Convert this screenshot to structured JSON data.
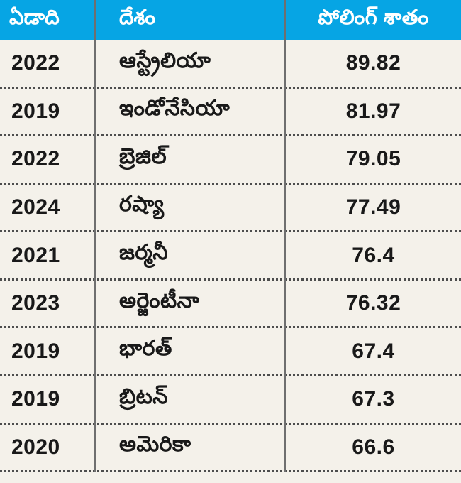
{
  "table": {
    "headers": [
      "ఏడాది",
      "దేశం",
      "పోలింగ్ శాతం"
    ],
    "rows": [
      {
        "year": "2022",
        "country": "ఆస్ట్రేలియా",
        "percent": "89.82"
      },
      {
        "year": "2019",
        "country": "ఇండోనేసియా",
        "percent": "81.97"
      },
      {
        "year": "2022",
        "country": "బ్రెజిల్",
        "percent": "79.05"
      },
      {
        "year": "2024",
        "country": "రష్యా",
        "percent": "77.49"
      },
      {
        "year": "2021",
        "country": "జర్మనీ",
        "percent": "76.4"
      },
      {
        "year": "2023",
        "country": "అర్జెంటీనా",
        "percent": "76.32"
      },
      {
        "year": "2019",
        "country": "భారత్",
        "percent": "67.4"
      },
      {
        "year": "2019",
        "country": "బ్రిటన్",
        "percent": "67.3"
      },
      {
        "year": "2020",
        "country": "అమెరికా",
        "percent": "66.6"
      }
    ]
  },
  "colors": {
    "header_bg": "#06A5E4",
    "header_text": "#FFFFFF",
    "body_bg": "#F4F1EA",
    "text": "#191919",
    "divider": "#6F6F6F",
    "dotted": "#4D4D4D"
  },
  "chart_data": {
    "type": "table",
    "title": "పోలింగ్ శాతం",
    "columns": [
      "ఏడాది",
      "దేశం",
      "పోలింగ్ శాతం"
    ],
    "rows": [
      [
        "2022",
        "ఆస్ట్రేలియా",
        89.82
      ],
      [
        "2019",
        "ఇండోనేసియా",
        81.97
      ],
      [
        "2022",
        "బ్రెజిల్",
        79.05
      ],
      [
        "2024",
        "రష్యా",
        77.49
      ],
      [
        "2021",
        "జర్మనీ",
        76.4
      ],
      [
        "2023",
        "అర్జెంటీనా",
        76.32
      ],
      [
        "2019",
        "భారత్",
        67.4
      ],
      [
        "2019",
        "బ్రిటన్",
        67.3
      ],
      [
        "2020",
        "అమెరికా",
        66.6
      ]
    ]
  }
}
